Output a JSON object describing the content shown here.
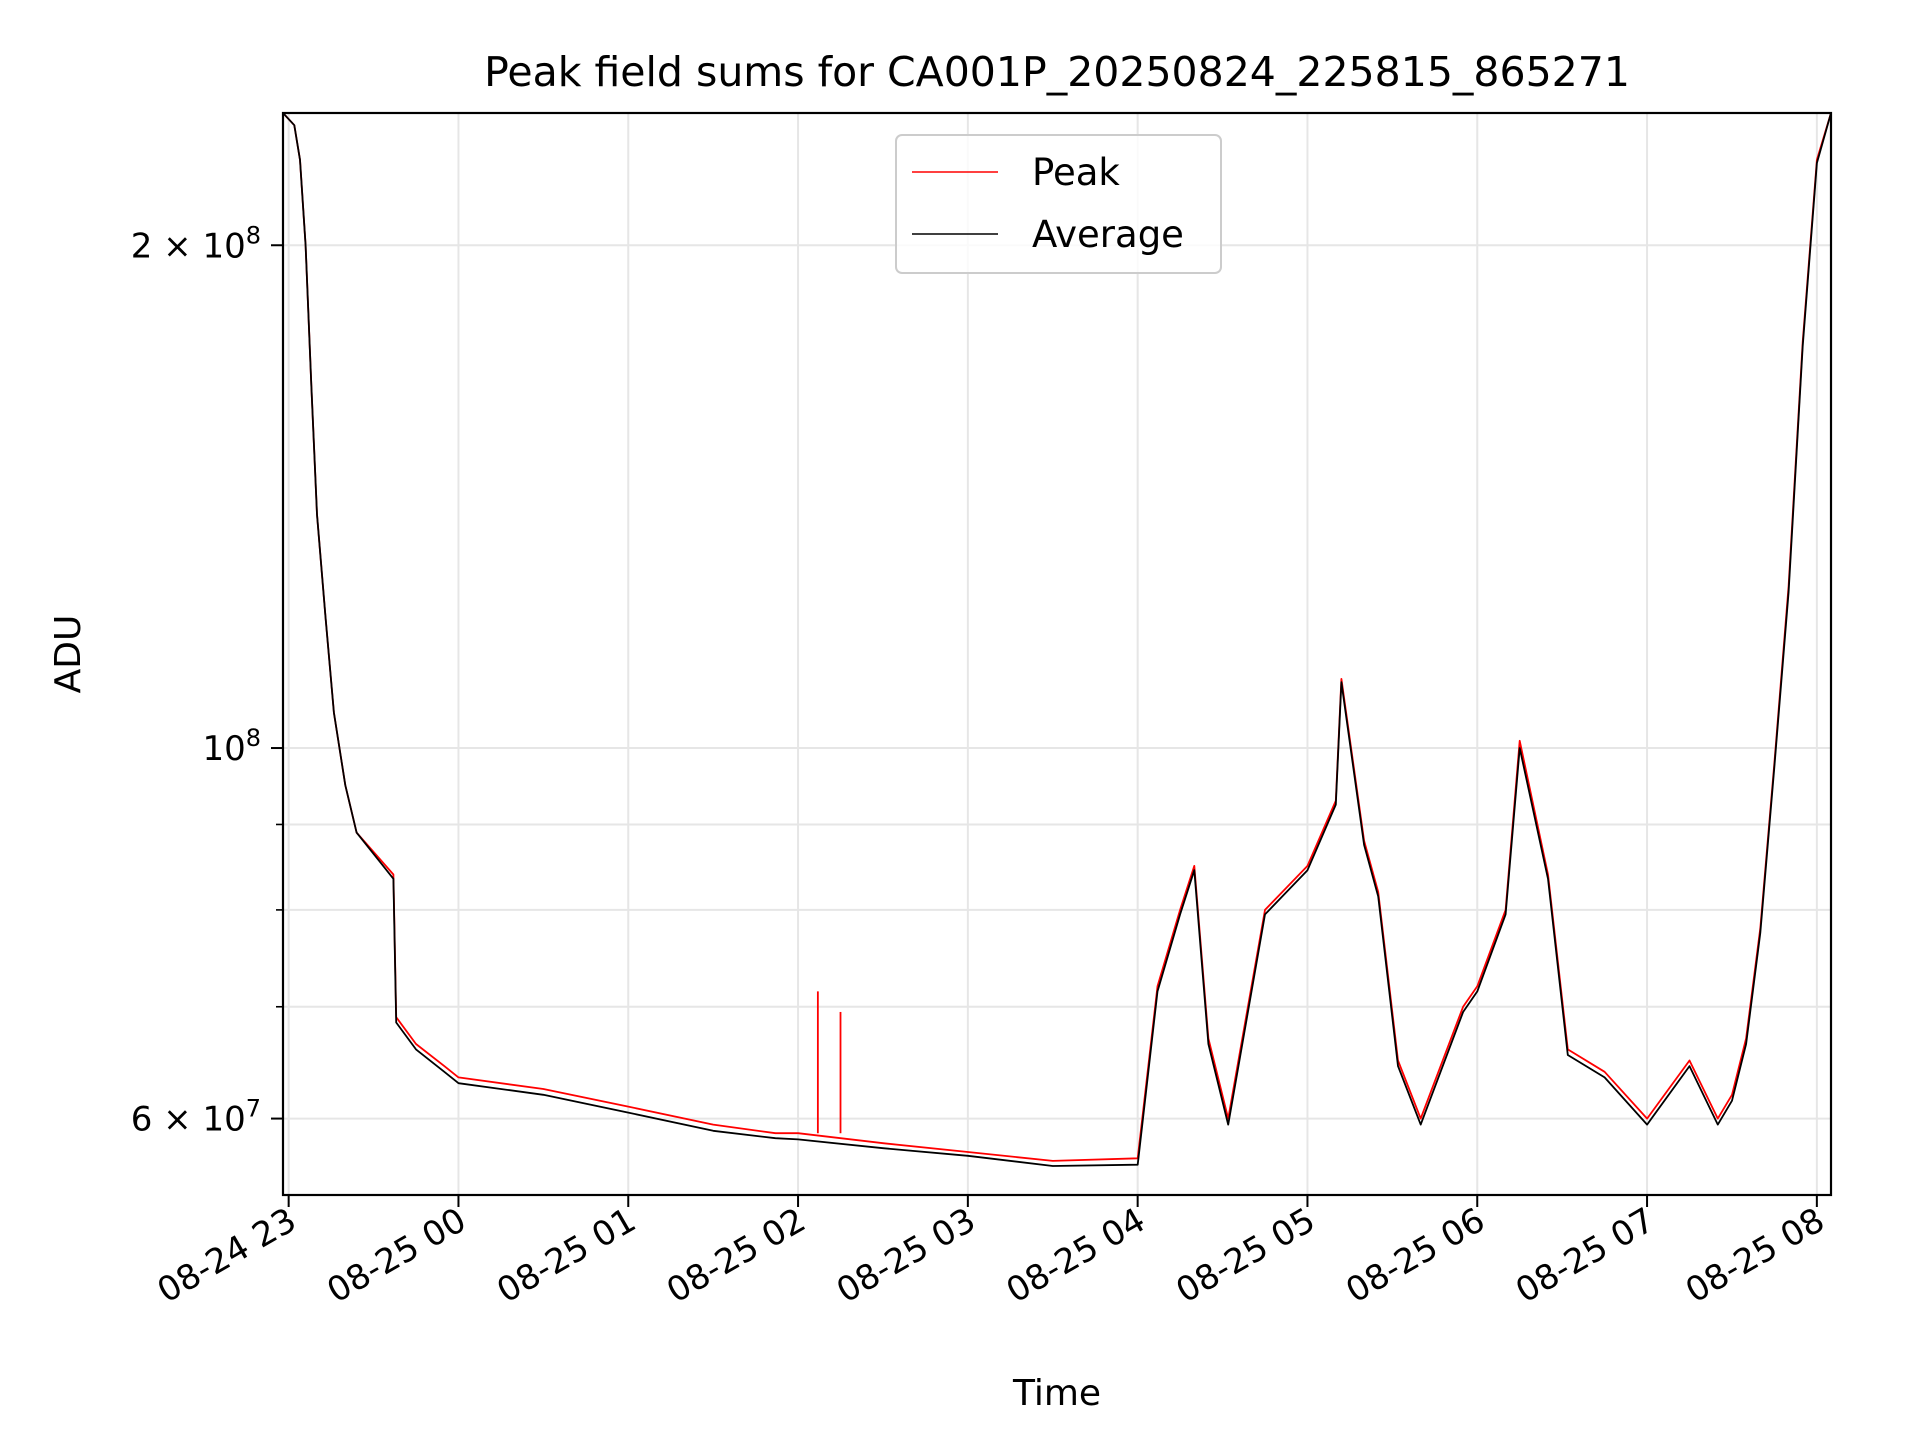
{
  "chart_data": {
    "type": "line",
    "title": "Peak field sums for CA001P_20250824_225815_865271",
    "xlabel": "Time",
    "ylabel": "ADU",
    "x_axis": {
      "type": "time",
      "range": [
        "2025-08-24 22:58",
        "2025-08-25 08:05"
      ],
      "tick_labels": [
        "08-24 23",
        "08-25 00",
        "08-25 01",
        "08-25 02",
        "08-25 03",
        "08-25 04",
        "08-25 05",
        "08-25 06",
        "08-25 07",
        "08-25 08"
      ]
    },
    "y_axis": {
      "scale": "log",
      "range": [
        54000000,
        240000000
      ],
      "tick_labels": [
        {
          "value": 60000000,
          "mantissa": "6",
          "exponent": "7"
        },
        {
          "value": 100000000,
          "mantissa": "",
          "exponent": "8"
        },
        {
          "value": 200000000,
          "mantissa": "2",
          "exponent": "8"
        }
      ],
      "minor_ticks": [
        70000000,
        80000000,
        90000000
      ]
    },
    "grid": true,
    "legend": {
      "position": "top-center",
      "entries": [
        "Peak",
        "Average"
      ]
    },
    "series": [
      {
        "name": "Peak",
        "color": "#ff0000",
        "points": [
          [
            "2025-08-24 22:58",
            240000000
          ],
          [
            "2025-08-24 23:02",
            236000000
          ],
          [
            "2025-08-24 23:04",
            225000000
          ],
          [
            "2025-08-24 23:06",
            200000000
          ],
          [
            "2025-08-24 23:08",
            165000000
          ],
          [
            "2025-08-24 23:10",
            138000000
          ],
          [
            "2025-08-24 23:13",
            120000000
          ],
          [
            "2025-08-24 23:16",
            105000000
          ],
          [
            "2025-08-24 23:20",
            95000000
          ],
          [
            "2025-08-24 23:24",
            89000000
          ],
          [
            "2025-08-24 23:37",
            84000000
          ],
          [
            "2025-08-24 23:38",
            69000000
          ],
          [
            "2025-08-24 23:45",
            66500000
          ],
          [
            "2025-08-24 23:55",
            64500000
          ],
          [
            "2025-08-25 00:00",
            63500000
          ],
          [
            "2025-08-25 00:30",
            62500000
          ],
          [
            "2025-08-25 01:00",
            61000000
          ],
          [
            "2025-08-25 01:30",
            59500000
          ],
          [
            "2025-08-25 01:52",
            58800000
          ],
          [
            "2025-08-25 02:00",
            58800000
          ],
          [
            "2025-08-25 02:30",
            58000000
          ],
          [
            "2025-08-25 03:00",
            57300000
          ],
          [
            "2025-08-25 03:30",
            56600000
          ],
          [
            "2025-08-25 04:00",
            56800000
          ],
          [
            "2025-08-25 04:07",
            72000000
          ],
          [
            "2025-08-25 04:15",
            80000000
          ],
          [
            "2025-08-25 04:20",
            85000000
          ],
          [
            "2025-08-25 04:25",
            67000000
          ],
          [
            "2025-08-25 04:32",
            60000000
          ],
          [
            "2025-08-25 04:45",
            80000000
          ],
          [
            "2025-08-25 05:00",
            85000000
          ],
          [
            "2025-08-25 05:10",
            93000000
          ],
          [
            "2025-08-25 05:12",
            110000000
          ],
          [
            "2025-08-25 05:20",
            88000000
          ],
          [
            "2025-08-25 05:25",
            82000000
          ],
          [
            "2025-08-25 05:32",
            65000000
          ],
          [
            "2025-08-25 05:40",
            60000000
          ],
          [
            "2025-08-25 05:55",
            70000000
          ],
          [
            "2025-08-25 06:00",
            72000000
          ],
          [
            "2025-08-25 06:10",
            80000000
          ],
          [
            "2025-08-25 06:15",
            101000000
          ],
          [
            "2025-08-25 06:25",
            84000000
          ],
          [
            "2025-08-25 06:32",
            66000000
          ],
          [
            "2025-08-25 06:45",
            64000000
          ],
          [
            "2025-08-25 07:00",
            60000000
          ],
          [
            "2025-08-25 07:15",
            65000000
          ],
          [
            "2025-08-25 07:25",
            60000000
          ],
          [
            "2025-08-25 07:30",
            62000000
          ],
          [
            "2025-08-25 07:35",
            67000000
          ],
          [
            "2025-08-25 07:40",
            78000000
          ],
          [
            "2025-08-25 07:45",
            98000000
          ],
          [
            "2025-08-25 07:50",
            125000000
          ],
          [
            "2025-08-25 07:55",
            175000000
          ],
          [
            "2025-08-25 08:00",
            225000000
          ],
          [
            "2025-08-25 08:05",
            240000000
          ]
        ],
        "spikes": [
          [
            "2025-08-25 02:07",
            71500000
          ],
          [
            "2025-08-25 02:15",
            69500000
          ]
        ]
      },
      {
        "name": "Average",
        "color": "#000000",
        "points": [
          [
            "2025-08-24 22:58",
            240000000
          ],
          [
            "2025-08-24 23:02",
            236000000
          ],
          [
            "2025-08-24 23:04",
            225000000
          ],
          [
            "2025-08-24 23:06",
            200000000
          ],
          [
            "2025-08-24 23:08",
            165000000
          ],
          [
            "2025-08-24 23:10",
            138000000
          ],
          [
            "2025-08-24 23:13",
            120000000
          ],
          [
            "2025-08-24 23:16",
            105000000
          ],
          [
            "2025-08-24 23:20",
            95000000
          ],
          [
            "2025-08-24 23:24",
            89000000
          ],
          [
            "2025-08-24 23:37",
            83500000
          ],
          [
            "2025-08-24 23:38",
            68500000
          ],
          [
            "2025-08-24 23:45",
            66000000
          ],
          [
            "2025-08-24 23:55",
            64000000
          ],
          [
            "2025-08-25 00:00",
            63000000
          ],
          [
            "2025-08-25 00:30",
            62000000
          ],
          [
            "2025-08-25 01:00",
            60500000
          ],
          [
            "2025-08-25 01:30",
            59000000
          ],
          [
            "2025-08-25 01:52",
            58400000
          ],
          [
            "2025-08-25 02:00",
            58300000
          ],
          [
            "2025-08-25 02:30",
            57600000
          ],
          [
            "2025-08-25 03:00",
            57000000
          ],
          [
            "2025-08-25 03:30",
            56200000
          ],
          [
            "2025-08-25 04:00",
            56300000
          ],
          [
            "2025-08-25 04:07",
            71500000
          ],
          [
            "2025-08-25 04:15",
            79500000
          ],
          [
            "2025-08-25 04:20",
            84500000
          ],
          [
            "2025-08-25 04:25",
            66500000
          ],
          [
            "2025-08-25 04:32",
            59500000
          ],
          [
            "2025-08-25 04:45",
            79500000
          ],
          [
            "2025-08-25 05:00",
            84500000
          ],
          [
            "2025-08-25 05:10",
            92500000
          ],
          [
            "2025-08-25 05:12",
            109500000
          ],
          [
            "2025-08-25 05:20",
            87500000
          ],
          [
            "2025-08-25 05:25",
            81500000
          ],
          [
            "2025-08-25 05:32",
            64500000
          ],
          [
            "2025-08-25 05:40",
            59500000
          ],
          [
            "2025-08-25 05:55",
            69500000
          ],
          [
            "2025-08-25 06:00",
            71500000
          ],
          [
            "2025-08-25 06:10",
            79500000
          ],
          [
            "2025-08-25 06:15",
            100000000
          ],
          [
            "2025-08-25 06:25",
            83500000
          ],
          [
            "2025-08-25 06:32",
            65500000
          ],
          [
            "2025-08-25 06:45",
            63500000
          ],
          [
            "2025-08-25 07:00",
            59500000
          ],
          [
            "2025-08-25 07:15",
            64500000
          ],
          [
            "2025-08-25 07:25",
            59500000
          ],
          [
            "2025-08-25 07:30",
            61500000
          ],
          [
            "2025-08-25 07:35",
            66500000
          ],
          [
            "2025-08-25 07:40",
            77500000
          ],
          [
            "2025-08-25 07:45",
            97500000
          ],
          [
            "2025-08-25 07:50",
            124000000
          ],
          [
            "2025-08-25 07:55",
            174000000
          ],
          [
            "2025-08-25 08:00",
            224000000
          ],
          [
            "2025-08-25 08:05",
            240000000
          ]
        ]
      }
    ]
  }
}
